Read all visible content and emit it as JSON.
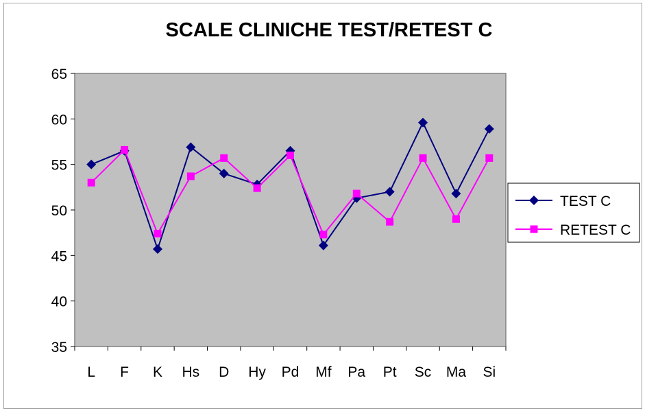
{
  "chart_data": {
    "type": "line",
    "title": "SCALE CLINICHE TEST/RETEST  C",
    "xlabel": "",
    "ylabel": "",
    "categories": [
      "L",
      "F",
      "K",
      "Hs",
      "D",
      "Hy",
      "Pd",
      "Mf",
      "Pa",
      "Pt",
      "Sc",
      "Ma",
      "Si"
    ],
    "ylim": [
      35,
      65
    ],
    "yticks": [
      35,
      40,
      45,
      50,
      55,
      60,
      65
    ],
    "grid": false,
    "plot_background": "#c0c0c0",
    "legend_position": "right",
    "series": [
      {
        "name": "TEST C",
        "color": "#000080",
        "marker": "diamond",
        "values": [
          55.0,
          56.5,
          45.7,
          56.9,
          54.0,
          52.8,
          56.5,
          46.1,
          51.3,
          52.0,
          59.6,
          51.8,
          58.9
        ]
      },
      {
        "name": "RETEST C",
        "color": "#ff00ff",
        "marker": "square",
        "values": [
          53.0,
          56.6,
          47.4,
          53.7,
          55.7,
          52.4,
          56.0,
          47.3,
          51.8,
          48.7,
          55.7,
          49.0,
          55.7
        ]
      }
    ]
  }
}
